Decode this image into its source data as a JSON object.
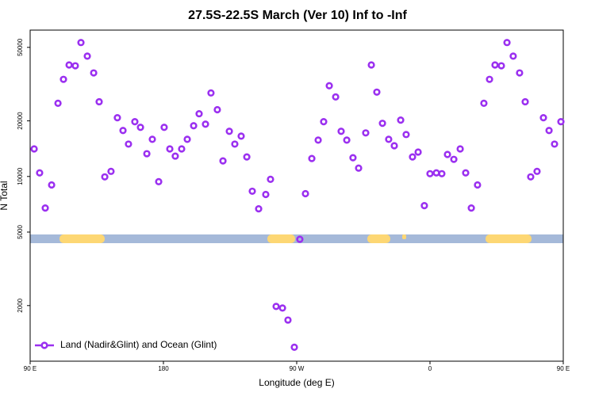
{
  "chart_data": {
    "type": "scatter",
    "title": "27.5S-22.5S March (Ver 10)   Inf to -Inf",
    "x_label": "Longitude (deg E)",
    "y_label": "N Total",
    "xlim": [
      90,
      450
    ],
    "xticks": [
      {
        "value": 90,
        "label": "90 E"
      },
      {
        "value": 180,
        "label": "180"
      },
      {
        "value": 270,
        "label": "90 W"
      },
      {
        "value": 360,
        "label": "0"
      },
      {
        "value": 450,
        "label": "90 E"
      }
    ],
    "ylim": [
      1000,
      62000
    ],
    "yticks": [
      2000,
      5000,
      10000,
      20000,
      50000
    ],
    "log_y": true,
    "legend": "bottom-left",
    "series": [
      {
        "name": "Land (Nadir&Glint) and Ocean (Glint)",
        "color": "#9b30f0",
        "x": [
          92.7,
          96.4,
          100.2,
          104.5,
          108.8,
          112.5,
          116.3,
          120.5,
          124.3,
          128.6,
          132.9,
          136.6,
          140.4,
          144.6,
          148.9,
          152.7,
          156.4,
          160.7,
          164.5,
          168.8,
          172.5,
          176.8,
          180.5,
          184.3,
          188.0,
          192.3,
          196.1,
          200.4,
          204.1,
          208.4,
          212.1,
          216.4,
          220.2,
          224.5,
          228.2,
          232.5,
          236.3,
          240.0,
          244.3,
          249.1,
          252.3,
          256.1,
          260.4,
          264.1,
          268.4,
          272.1,
          275.9,
          280.2,
          284.5,
          288.2,
          292.0,
          296.3,
          300.0,
          303.8,
          308.0,
          311.8,
          316.6,
          320.4,
          324.1,
          327.9,
          332.1,
          335.9,
          340.2,
          343.9,
          348.2,
          352.0,
          356.2,
          360.0,
          364.3,
          368.0,
          371.8,
          376.1,
          380.4,
          384.1,
          387.9,
          392.1,
          396.4,
          400.2,
          403.9,
          408.2,
          412.0,
          416.2,
          420.5,
          424.3,
          428.0,
          432.3,
          436.6,
          440.4,
          444.1,
          448.4
        ],
        "values": [
          14100,
          10460,
          6750,
          9000,
          24900,
          33560,
          40150,
          39740,
          53100,
          44800,
          36360,
          25380,
          9950,
          10660,
          20800,
          17740,
          14970,
          19790,
          18450,
          13280,
          15890,
          9370,
          18450,
          14100,
          12890,
          14100,
          15890,
          18820,
          21860,
          19200,
          28330,
          22980,
          12140,
          17560,
          14970,
          16530,
          12760,
          8320,
          6680,
          7990,
          9650,
          1979,
          1940,
          1670,
          1190,
          4570,
          8070,
          12510,
          15740,
          19790,
          30980,
          26950,
          17560,
          15740,
          12630,
          11100,
          17210,
          40150,
          28620,
          19400,
          15890,
          14670,
          20190,
          16870,
          12760,
          13550,
          6950,
          10350,
          10460,
          10350,
          13160,
          12380,
          14100,
          10460,
          6750,
          9000,
          24900,
          33560,
          40150,
          39740,
          53100,
          44800,
          36360,
          25380,
          9950,
          10660,
          20800,
          17740,
          14970,
          19790
        ]
      }
    ]
  }
}
